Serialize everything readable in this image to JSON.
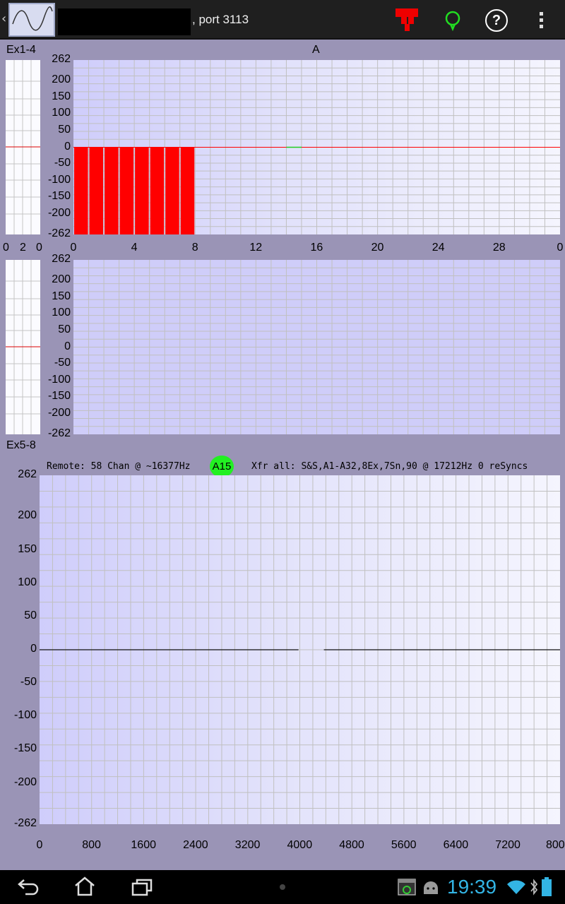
{
  "action_bar": {
    "back": "‹",
    "connection_label": ", port 3113",
    "icons": [
      "app-waveform-icon",
      "record-icon",
      "connection-status-icon",
      "help-icon",
      "overflow-menu-icon"
    ],
    "help_glyph": "?"
  },
  "top_panel": {
    "title": "Ex1-4",
    "channel_label": "A",
    "mini_x_ticks": [
      "0",
      "2",
      "0"
    ],
    "y_ticks": [
      "262",
      "200",
      "150",
      "100",
      "50",
      "0",
      "-50",
      "-100",
      "-150",
      "-200",
      "-262"
    ],
    "x_ticks": [
      "0",
      "4",
      "8",
      "12",
      "16",
      "20",
      "24",
      "28",
      "0"
    ],
    "bar_color": "#ff0000",
    "zero_line_color": "#ff0000",
    "marker_color": "#22cc22"
  },
  "middle_panel": {
    "y_ticks": [
      "262",
      "200",
      "150",
      "100",
      "50",
      "0",
      "-50",
      "-100",
      "-150",
      "-200",
      "-262"
    ]
  },
  "bottom_panel": {
    "title": "Ex5-8",
    "remote_status": "Remote: 58 Chan @ ~16377Hz",
    "badge": "A15",
    "badge_color": "#22f022",
    "transfer_status": "Xfr all: S&S,A1-A32,8Ex,7Sn,90 @ 17212Hz 0 reSyncs",
    "y_ticks": [
      "262",
      "200",
      "150",
      "100",
      "50",
      "0",
      "-50",
      "-100",
      "-150",
      "-200",
      "-262"
    ],
    "x_ticks": [
      "0",
      "800",
      "1600",
      "2400",
      "3200",
      "4000",
      "4800",
      "5600",
      "6400",
      "7200",
      "800"
    ]
  },
  "chart_data": [
    {
      "type": "bar",
      "title": "A",
      "x_range": [
        0,
        32
      ],
      "ylim": [
        -262,
        262
      ],
      "x_tick_labels": [
        "0",
        "4",
        "8",
        "12",
        "16",
        "20",
        "24",
        "28",
        "0"
      ],
      "bars": [
        {
          "x": 0,
          "value": -262
        },
        {
          "x": 1,
          "value": -262
        },
        {
          "x": 2,
          "value": -262
        },
        {
          "x": 3,
          "value": -262
        },
        {
          "x": 4,
          "value": -262
        },
        {
          "x": 5,
          "value": -262
        },
        {
          "x": 6,
          "value": -262
        },
        {
          "x": 7,
          "value": -262
        }
      ],
      "baseline": 0,
      "grid": true
    },
    {
      "type": "line",
      "ylim": [
        -262,
        262
      ],
      "grid": true,
      "series": []
    },
    {
      "type": "line",
      "x_range": [
        0,
        8000
      ],
      "ylim": [
        -262,
        262
      ],
      "x_tick_labels": [
        "0",
        "800",
        "1600",
        "2400",
        "3200",
        "4000",
        "4800",
        "5600",
        "6400",
        "7200",
        "800"
      ],
      "grid": true,
      "series": [
        {
          "segments": [
            [
              [
                0,
                0
              ],
              [
                3980,
                0
              ]
            ],
            [
              [
                4370,
                0
              ],
              [
                8000,
                0
              ]
            ]
          ]
        }
      ]
    }
  ],
  "status_bar": {
    "time": "19:39",
    "clock_color": "#33b5e5",
    "icons": [
      "back-nav-icon",
      "home-nav-icon",
      "recent-apps-icon",
      "screenshot-icon",
      "android-icon",
      "wifi-icon",
      "bluetooth-icon",
      "battery-icon"
    ]
  }
}
